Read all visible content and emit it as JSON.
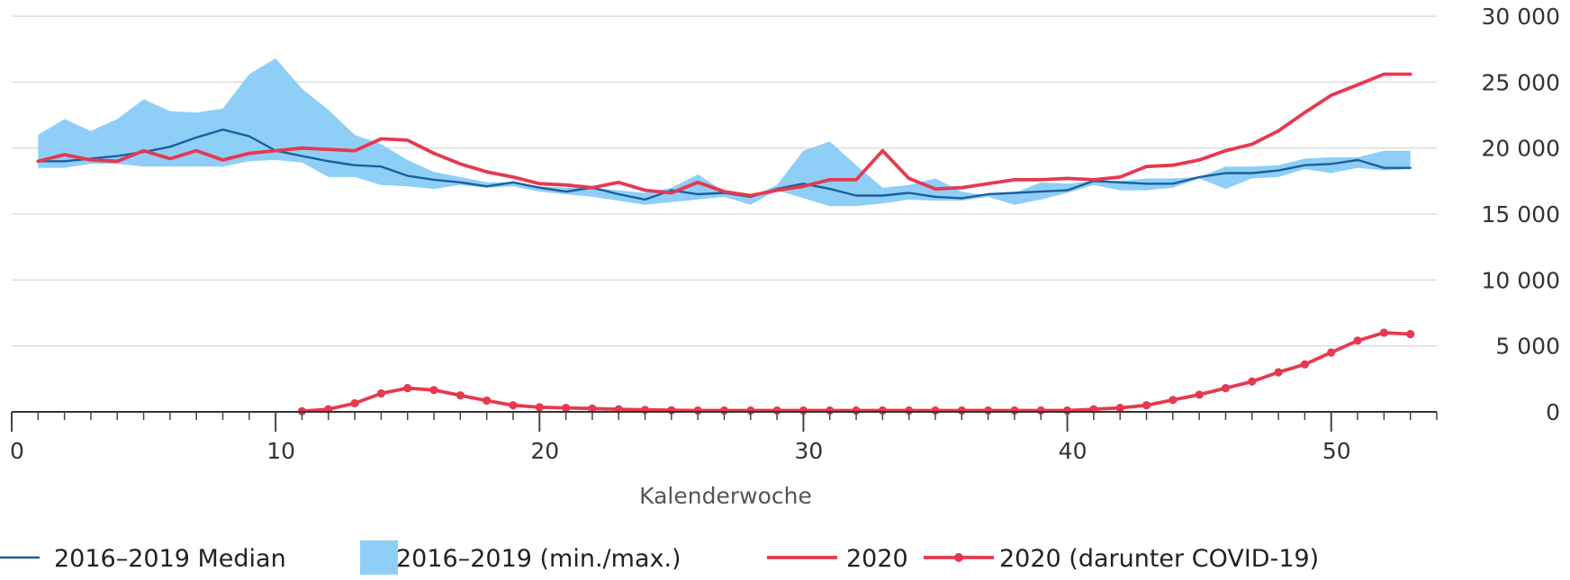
{
  "chart_data": {
    "type": "line",
    "xlabel": "Kalenderwoche",
    "ylabel": "",
    "xlim": [
      0,
      54
    ],
    "ylim": [
      0,
      30000
    ],
    "x_ticks": [
      0,
      10,
      20,
      30,
      40,
      50
    ],
    "x_tick_labels": [
      "0",
      "10",
      "20",
      "30",
      "40",
      "50"
    ],
    "x_minor_step": 1,
    "y_ticks": [
      0,
      5000,
      10000,
      15000,
      20000,
      25000,
      30000
    ],
    "y_tick_labels": [
      "0",
      "5 000",
      "10 000",
      "15 000",
      "20 000",
      "25 000",
      "30 000"
    ],
    "y_axis_side": "right",
    "grid": "horizontal",
    "legend_position": "bottom",
    "legend": [
      {
        "label": "2016–2019 Median",
        "kind": "line",
        "color": "#1a5f9e"
      },
      {
        "label": "2016–2019 (min./max.)",
        "kind": "band",
        "color": "#8fcff7"
      },
      {
        "label": "2020",
        "kind": "line",
        "color": "#e63950"
      },
      {
        "label": "2020 (darunter COVID-19)",
        "kind": "line-dot",
        "color": "#e63950"
      }
    ],
    "band": {
      "name": "2016–2019 (min./max.)",
      "color": "#8fcff7",
      "x": [
        1,
        2,
        3,
        4,
        5,
        6,
        7,
        8,
        9,
        10,
        11,
        12,
        13,
        14,
        15,
        16,
        17,
        18,
        19,
        20,
        21,
        22,
        23,
        24,
        25,
        26,
        27,
        28,
        29,
        30,
        31,
        32,
        33,
        34,
        35,
        36,
        37,
        38,
        39,
        40,
        41,
        42,
        43,
        44,
        45,
        46,
        47,
        48,
        49,
        50,
        51,
        52,
        53
      ],
      "min": [
        18500,
        18500,
        18800,
        18800,
        18600,
        18600,
        18600,
        18600,
        19000,
        19100,
        18900,
        17800,
        17800,
        17200,
        17100,
        16900,
        17200,
        17000,
        17100,
        16700,
        16500,
        16300,
        16000,
        15700,
        15900,
        16100,
        16300,
        15700,
        16800,
        16200,
        15600,
        15600,
        15800,
        16100,
        16000,
        16000,
        16300,
        15700,
        16100,
        16600,
        17200,
        16800,
        16800,
        17000,
        17700,
        16900,
        17700,
        17800,
        18400,
        18100,
        18500,
        18300,
        18400
      ],
      "max": [
        21000,
        22200,
        21300,
        22200,
        23700,
        22800,
        22700,
        23000,
        25600,
        26800,
        24500,
        22900,
        21000,
        20300,
        19100,
        18200,
        17800,
        17400,
        17400,
        17100,
        17000,
        17000,
        16800,
        16600,
        17000,
        18000,
        16700,
        16300,
        17200,
        19800,
        20500,
        18700,
        17000,
        17200,
        17700,
        16700,
        16400,
        16600,
        17400,
        17300,
        17500,
        17500,
        17700,
        17700,
        17800,
        18600,
        18600,
        18700,
        19200,
        19300,
        19300,
        19800,
        19800
      ]
    },
    "series": [
      {
        "name": "2016–2019 Median",
        "color": "#1a5f9e",
        "style": "line",
        "x": [
          1,
          2,
          3,
          4,
          5,
          6,
          7,
          8,
          9,
          10,
          11,
          12,
          13,
          14,
          15,
          16,
          17,
          18,
          19,
          20,
          21,
          22,
          23,
          24,
          25,
          26,
          27,
          28,
          29,
          30,
          31,
          32,
          33,
          34,
          35,
          36,
          37,
          38,
          39,
          40,
          41,
          42,
          43,
          44,
          45,
          46,
          47,
          48,
          49,
          50,
          51,
          52,
          53
        ],
        "values": [
          19000,
          19000,
          19200,
          19400,
          19700,
          20100,
          20800,
          21400,
          20900,
          19800,
          19400,
          19000,
          18700,
          18600,
          17900,
          17600,
          17400,
          17100,
          17400,
          17000,
          16700,
          17000,
          16500,
          16100,
          16800,
          16500,
          16600,
          16300,
          16900,
          17300,
          16900,
          16400,
          16400,
          16600,
          16300,
          16200,
          16500,
          16600,
          16700,
          16800,
          17500,
          17400,
          17300,
          17300,
          17800,
          18100,
          18100,
          18300,
          18700,
          18800,
          19100,
          18500,
          18500
        ]
      },
      {
        "name": "2020",
        "color": "#e63950",
        "style": "line",
        "x": [
          1,
          2,
          3,
          4,
          5,
          6,
          7,
          8,
          9,
          10,
          11,
          12,
          13,
          14,
          15,
          16,
          17,
          18,
          19,
          20,
          21,
          22,
          23,
          24,
          25,
          26,
          27,
          28,
          29,
          30,
          31,
          32,
          33,
          34,
          35,
          36,
          37,
          38,
          39,
          40,
          41,
          42,
          43,
          44,
          45,
          46,
          47,
          48,
          49,
          50,
          51,
          52,
          53
        ],
        "values": [
          19000,
          19500,
          19100,
          19000,
          19800,
          19200,
          19800,
          19100,
          19600,
          19800,
          20000,
          19900,
          19800,
          20700,
          20600,
          19600,
          18800,
          18200,
          17800,
          17300,
          17200,
          17000,
          17400,
          16800,
          16600,
          17400,
          16700,
          16400,
          16800,
          17100,
          17600,
          17600,
          19800,
          17700,
          16900,
          17000,
          17300,
          17600,
          17600,
          17700,
          17600,
          17800,
          18600,
          18700,
          19100,
          19800,
          20300,
          21300,
          22700,
          24000,
          24800,
          25600,
          25600
        ]
      },
      {
        "name": "2020 (darunter COVID-19)",
        "color": "#e63950",
        "style": "line-dot",
        "x": [
          11,
          12,
          13,
          14,
          15,
          16,
          17,
          18,
          19,
          20,
          21,
          22,
          23,
          24,
          25,
          26,
          27,
          28,
          29,
          30,
          31,
          32,
          33,
          34,
          35,
          36,
          37,
          38,
          39,
          40,
          41,
          42,
          43,
          44,
          45,
          46,
          47,
          48,
          49,
          50,
          51,
          52,
          53
        ],
        "values": [
          50,
          200,
          650,
          1400,
          1800,
          1650,
          1250,
          850,
          500,
          350,
          300,
          250,
          200,
          150,
          120,
          100,
          100,
          100,
          100,
          100,
          100,
          100,
          100,
          100,
          100,
          100,
          100,
          100,
          100,
          100,
          200,
          300,
          500,
          900,
          1300,
          1800,
          2300,
          3000,
          3600,
          4500,
          5400,
          6000,
          5900
        ]
      }
    ]
  }
}
